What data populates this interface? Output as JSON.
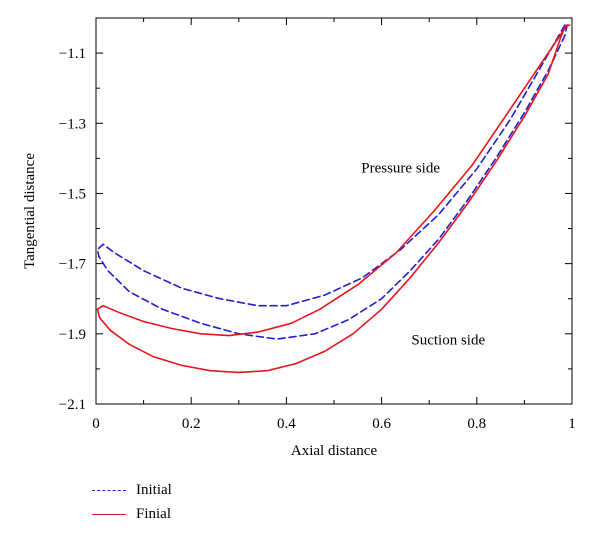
{
  "chart_data": {
    "type": "line",
    "xlabel": "Axial distance",
    "ylabel": "Tangential distance",
    "xlim": [
      0,
      1
    ],
    "ylim": [
      -2.1,
      -1.0
    ],
    "xticks": [
      0,
      0.2,
      0.4,
      0.6,
      0.8,
      1
    ],
    "xtick_labels": [
      "0",
      "0.2",
      "0.4",
      "0.6",
      "0.8",
      "1"
    ],
    "yticks": [
      -2.1,
      -1.9,
      -1.7,
      -1.5,
      -1.3,
      -1.1
    ],
    "ytick_labels": [
      "-2.1",
      "-1.9",
      "-1.7",
      "-1.5",
      "-1.3",
      "-1.1"
    ],
    "grid": false,
    "legend_position": "below-left",
    "annotations": [
      {
        "text": "Pressure side",
        "x": 0.64,
        "y": -1.44
      },
      {
        "text": "Suction side",
        "x": 0.74,
        "y": -1.93
      }
    ],
    "series": [
      {
        "name": "Initial",
        "color": "#1f1fd0",
        "dash": "dashed",
        "points": [
          [
            0.985,
            -1.02
          ],
          [
            0.93,
            -1.15
          ],
          [
            0.87,
            -1.29
          ],
          [
            0.8,
            -1.43
          ],
          [
            0.72,
            -1.56
          ],
          [
            0.64,
            -1.66
          ],
          [
            0.56,
            -1.74
          ],
          [
            0.48,
            -1.79
          ],
          [
            0.4,
            -1.82
          ],
          [
            0.34,
            -1.82
          ],
          [
            0.26,
            -1.8
          ],
          [
            0.18,
            -1.77
          ],
          [
            0.1,
            -1.72
          ],
          [
            0.04,
            -1.67
          ],
          [
            0.015,
            -1.645
          ],
          [
            0.003,
            -1.66
          ],
          [
            0.006,
            -1.68
          ],
          [
            0.025,
            -1.72
          ],
          [
            0.07,
            -1.78
          ],
          [
            0.14,
            -1.83
          ],
          [
            0.22,
            -1.87
          ],
          [
            0.3,
            -1.9
          ],
          [
            0.38,
            -1.915
          ],
          [
            0.46,
            -1.9
          ],
          [
            0.53,
            -1.86
          ],
          [
            0.6,
            -1.8
          ],
          [
            0.66,
            -1.72
          ],
          [
            0.72,
            -1.63
          ],
          [
            0.78,
            -1.52
          ],
          [
            0.84,
            -1.4
          ],
          [
            0.9,
            -1.27
          ],
          [
            0.95,
            -1.15
          ],
          [
            0.985,
            -1.05
          ],
          [
            0.99,
            -1.02
          ]
        ]
      },
      {
        "name": "Finial",
        "color": "#e8141c",
        "dash": "solid",
        "points": [
          [
            0.99,
            -1.02
          ],
          [
            0.93,
            -1.14
          ],
          [
            0.86,
            -1.28
          ],
          [
            0.79,
            -1.42
          ],
          [
            0.71,
            -1.55
          ],
          [
            0.63,
            -1.67
          ],
          [
            0.55,
            -1.76
          ],
          [
            0.47,
            -1.83
          ],
          [
            0.41,
            -1.87
          ],
          [
            0.34,
            -1.895
          ],
          [
            0.28,
            -1.905
          ],
          [
            0.22,
            -1.9
          ],
          [
            0.16,
            -1.885
          ],
          [
            0.1,
            -1.865
          ],
          [
            0.05,
            -1.84
          ],
          [
            0.015,
            -1.82
          ],
          [
            0.003,
            -1.83
          ],
          [
            0.008,
            -1.855
          ],
          [
            0.03,
            -1.89
          ],
          [
            0.07,
            -1.93
          ],
          [
            0.12,
            -1.965
          ],
          [
            0.18,
            -1.99
          ],
          [
            0.24,
            -2.005
          ],
          [
            0.3,
            -2.01
          ],
          [
            0.36,
            -2.005
          ],
          [
            0.42,
            -1.985
          ],
          [
            0.48,
            -1.95
          ],
          [
            0.54,
            -1.9
          ],
          [
            0.6,
            -1.83
          ],
          [
            0.66,
            -1.74
          ],
          [
            0.72,
            -1.64
          ],
          [
            0.78,
            -1.53
          ],
          [
            0.84,
            -1.41
          ],
          [
            0.9,
            -1.28
          ],
          [
            0.95,
            -1.16
          ],
          [
            0.975,
            -1.06
          ],
          [
            0.985,
            -1.025
          ],
          [
            0.995,
            -1.02
          ]
        ]
      }
    ]
  }
}
